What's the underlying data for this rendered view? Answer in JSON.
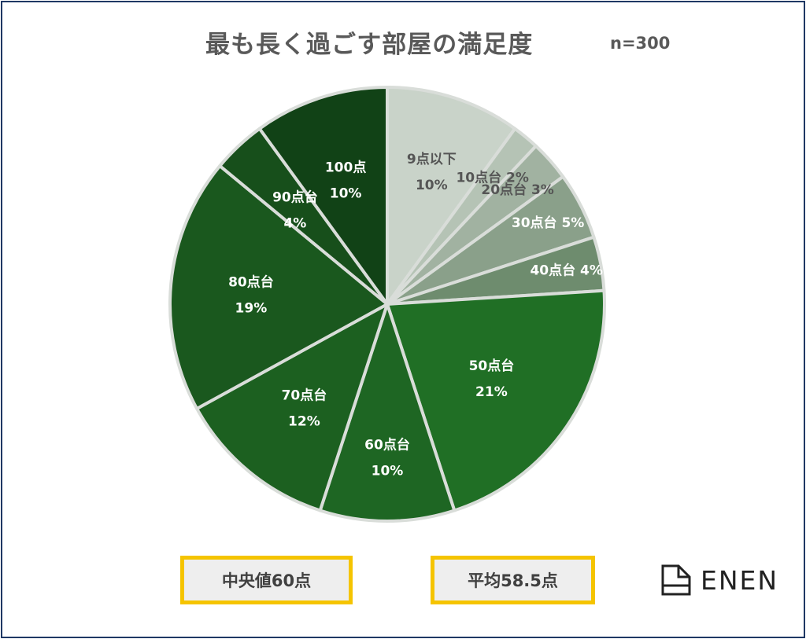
{
  "title": "最も長く過ごす部屋の満足度",
  "sample_note": "n=300",
  "chart_data": {
    "type": "pie",
    "title": "最も長く過ごす部屋の満足度",
    "n": 300,
    "unit": "%",
    "start": "top",
    "direction": "clockwise",
    "slices": [
      {
        "label": "9点以下",
        "value": 10,
        "value_label": "10%",
        "color": "#c9d3c9",
        "text_color": "#555555",
        "layout": "stacked"
      },
      {
        "label": "10点台",
        "value": 2,
        "value_label": "2%",
        "color": "#b5c3b5",
        "text_color": "#555555",
        "layout": "inline"
      },
      {
        "label": "20点台",
        "value": 3,
        "value_label": "3%",
        "color": "#a1b2a1",
        "text_color": "#555555",
        "layout": "inline"
      },
      {
        "label": "30点台",
        "value": 5,
        "value_label": "5%",
        "color": "#8aa08a",
        "text_color": "#ffffff",
        "layout": "inline"
      },
      {
        "label": "40点台",
        "value": 4,
        "value_label": "4%",
        "color": "#6e8c6e",
        "text_color": "#ffffff",
        "layout": "inline"
      },
      {
        "label": "50点台",
        "value": 21,
        "value_label": "21%",
        "color": "#206f25",
        "text_color": "#ffffff",
        "layout": "stacked"
      },
      {
        "label": "60点台",
        "value": 10,
        "value_label": "10%",
        "color": "#1e6623",
        "text_color": "#ffffff",
        "layout": "stacked"
      },
      {
        "label": "70点台",
        "value": 12,
        "value_label": "12%",
        "color": "#1c6020",
        "text_color": "#ffffff",
        "layout": "stacked"
      },
      {
        "label": "80点台",
        "value": 19,
        "value_label": "19%",
        "color": "#1a581e",
        "text_color": "#ffffff",
        "layout": "stacked"
      },
      {
        "label": "90点台",
        "value": 4,
        "value_label": "4%",
        "color": "#174f1b",
        "text_color": "#ffffff",
        "layout": "stacked"
      },
      {
        "label": "100点",
        "value": 10,
        "value_label": "10%",
        "color": "#114216",
        "text_color": "#ffffff",
        "layout": "stacked"
      }
    ]
  },
  "stats": {
    "median_label": "中央値60点",
    "mean_label": "平均58.5点"
  },
  "logo": {
    "text": "ENEN",
    "icon": "house-outline-icon"
  },
  "colors": {
    "frame_border": "#1f3864",
    "stat_border": "#f5c400",
    "stat_fill": "#eeeeee",
    "title_text": "#595959"
  }
}
